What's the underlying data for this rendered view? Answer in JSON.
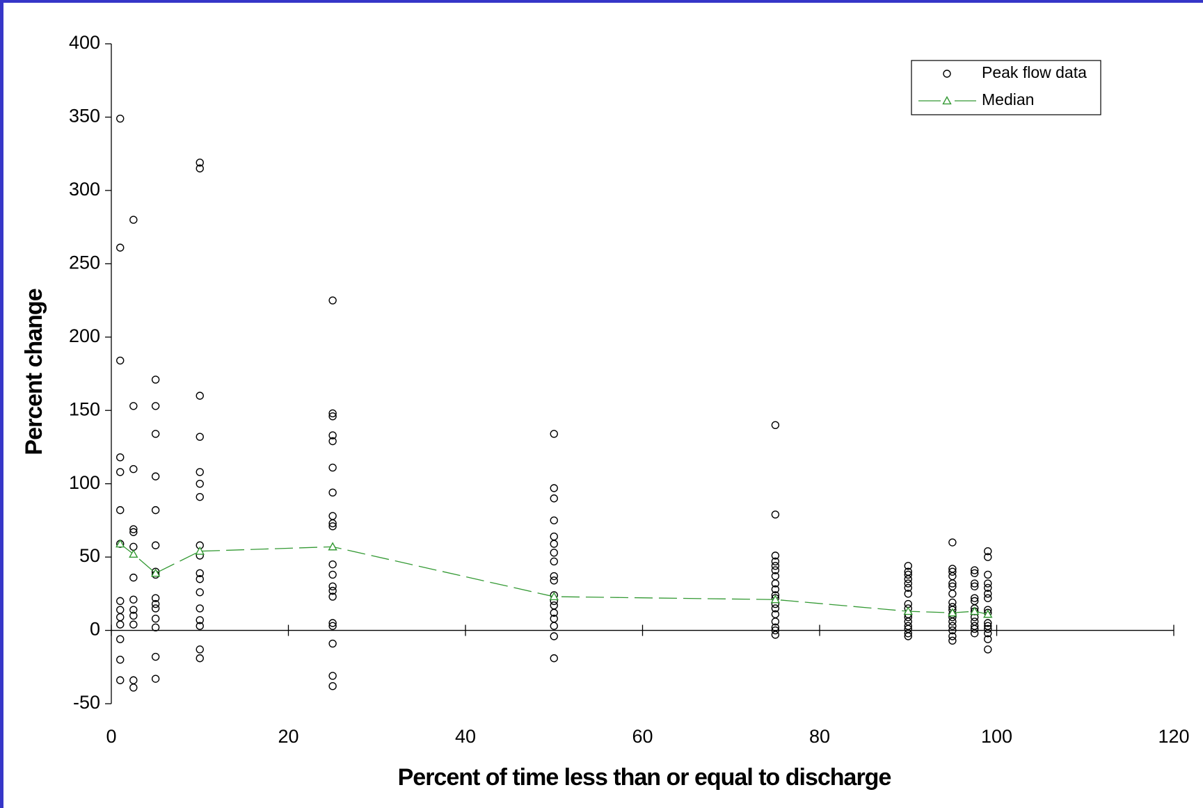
{
  "chart_data": {
    "type": "scatter",
    "x_label": "Percent of time less than or equal to discharge",
    "y_label": "Percent change",
    "xlim": [
      0,
      120
    ],
    "xticks": [
      0,
      20,
      40,
      60,
      80,
      100,
      120
    ],
    "ylim": [
      -50,
      400
    ],
    "yticks": [
      -50,
      0,
      50,
      100,
      150,
      200,
      250,
      300,
      350,
      400
    ],
    "grid": false,
    "legend": "upper right",
    "series": [
      {
        "name": "Peak flow data",
        "type": "scatter",
        "color": "#000000",
        "x": [
          1,
          1,
          1,
          1,
          1,
          1,
          1,
          1,
          1,
          1,
          1,
          1,
          1,
          1,
          2.5,
          2.5,
          2.5,
          2.5,
          2.5,
          2.5,
          2.5,
          2.5,
          2.5,
          2.5,
          2.5,
          2.5,
          2.5,
          5,
          5,
          5,
          5,
          5,
          5,
          5,
          5,
          5,
          5,
          5,
          5,
          5,
          5,
          5,
          10,
          10,
          10,
          10,
          10,
          10,
          10,
          10,
          10,
          10,
          10,
          10,
          10,
          10,
          10,
          10,
          10,
          25,
          25,
          25,
          25,
          25,
          25,
          25,
          25,
          25,
          25,
          25,
          25,
          25,
          25,
          25,
          25,
          25,
          25,
          25,
          25,
          50,
          50,
          50,
          50,
          50,
          50,
          50,
          50,
          50,
          50,
          50,
          50,
          50,
          50,
          50,
          50,
          50,
          50,
          75,
          75,
          75,
          75,
          75,
          75,
          75,
          75,
          75,
          75,
          75,
          75,
          75,
          75,
          75,
          75,
          75,
          75,
          90,
          90,
          90,
          90,
          90,
          90,
          90,
          90,
          90,
          90,
          90,
          90,
          90,
          90,
          90,
          90,
          95,
          95,
          95,
          95,
          95,
          95,
          95,
          95,
          95,
          95,
          95,
          95,
          95,
          95,
          95,
          95,
          95,
          97.5,
          97.5,
          97.5,
          97.5,
          97.5,
          97.5,
          97.5,
          97.5,
          97.5,
          97.5,
          97.5,
          97.5,
          97.5,
          99,
          99,
          99,
          99,
          99,
          99,
          99,
          99,
          99,
          99,
          99,
          99,
          99,
          99,
          99
        ],
        "values": [
          349,
          261,
          184,
          118,
          108,
          82,
          59,
          20,
          14,
          9,
          4,
          -6,
          -20,
          -34,
          280,
          153,
          110,
          69,
          67,
          57,
          36,
          21,
          14,
          10,
          4,
          -34,
          -39,
          171,
          153,
          134,
          105,
          82,
          58,
          40,
          38,
          22,
          18,
          15,
          8,
          2,
          -18,
          -33,
          319,
          315,
          160,
          132,
          108,
          100,
          91,
          58,
          51,
          39,
          35,
          26,
          15,
          7,
          3,
          -13,
          -19,
          225,
          148,
          146,
          133,
          129,
          111,
          94,
          78,
          73,
          71,
          45,
          38,
          30,
          27,
          23,
          5,
          3,
          -9,
          -31,
          -38,
          134,
          97,
          90,
          75,
          64,
          59,
          53,
          47,
          37,
          34,
          24,
          20,
          17,
          12,
          8,
          3,
          -4,
          -19,
          140,
          79,
          51,
          47,
          44,
          41,
          37,
          32,
          28,
          24,
          22,
          18,
          15,
          11,
          6,
          2,
          0,
          -3,
          44,
          40,
          38,
          35,
          32,
          29,
          25,
          18,
          15,
          11,
          9,
          6,
          3,
          1,
          -2,
          -4,
          60,
          42,
          40,
          37,
          32,
          30,
          25,
          19,
          16,
          14,
          11,
          9,
          6,
          3,
          0,
          -4,
          -7,
          41,
          39,
          32,
          30,
          22,
          20,
          15,
          13,
          9,
          6,
          3,
          1,
          -2,
          54,
          50,
          38,
          32,
          29,
          25,
          22,
          14,
          12,
          5,
          3,
          1,
          -2,
          -6,
          -13
        ]
      },
      {
        "name": "Median",
        "type": "line",
        "color": "#339933",
        "x": [
          1,
          2.5,
          5,
          10,
          25,
          50,
          75,
          90,
          95,
          97.5,
          99
        ],
        "values": [
          59,
          52,
          39,
          54,
          57,
          23,
          21,
          13,
          12,
          13,
          11
        ]
      }
    ]
  }
}
